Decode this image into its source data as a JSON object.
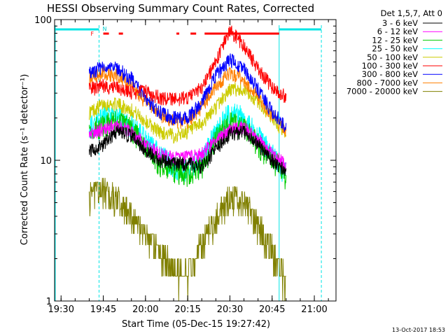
{
  "chart_data": {
    "type": "line",
    "title": "HESSI Observing Summary Count Rates, Corrected",
    "xlabel": "Start Time (05-Dec-15 19:27:42)",
    "ylabel": "Corrected Count Rate (s⁻¹ detector⁻¹)",
    "y_scale": "log",
    "ylim": [
      1,
      100
    ],
    "xlim": [
      "19:27:42",
      "21:07:42"
    ],
    "x_tick_labels": [
      "19:30",
      "19:45",
      "20:00",
      "20:15",
      "20:30",
      "20:45",
      "21:00"
    ],
    "y_tick_labels": [
      "1",
      "10",
      "100"
    ],
    "legend_title": "Det 1,5,7, Att 0",
    "flag_labels": {
      "flare": "F",
      "night": "N"
    },
    "timestamp": "13-Oct-2017 18:53",
    "x": [
      "19:40",
      "19:45",
      "19:50",
      "19:55",
      "20:00",
      "20:05",
      "20:10",
      "20:15",
      "20:20",
      "20:25",
      "20:30",
      "20:35",
      "20:40",
      "20:45",
      "20:48",
      "20:50"
    ],
    "series": [
      {
        "name": "3 - 6 keV",
        "color": "#000000",
        "values": [
          11.5,
          13,
          16,
          15,
          12,
          10,
          9.5,
          9.5,
          9,
          12,
          15.5,
          16,
          13,
          10,
          9,
          8
        ]
      },
      {
        "name": "6 - 12 keV",
        "color": "#ff00ff",
        "values": [
          15,
          17,
          18,
          16,
          13,
          11,
          10.5,
          10.5,
          11,
          14,
          17,
          17,
          14,
          11,
          10,
          9
        ]
      },
      {
        "name": "12 - 25 keV",
        "color": "#00cc00",
        "values": [
          16,
          18,
          19,
          17,
          12,
          9.5,
          8.5,
          8,
          9,
          14,
          19,
          17,
          13,
          10,
          9,
          7
        ]
      },
      {
        "name": "25 - 50 keV",
        "color": "#00ffff",
        "values": [
          17,
          20,
          20,
          18,
          14,
          11,
          9,
          8.5,
          10,
          16,
          22,
          20,
          15,
          11,
          9,
          8
        ]
      },
      {
        "name": "50 - 100 keV",
        "color": "#cccc00",
        "values": [
          22,
          25,
          25,
          23,
          19,
          16,
          15,
          16,
          18,
          24,
          32,
          32,
          26,
          20,
          17,
          16
        ]
      },
      {
        "name": "100 - 300 keV",
        "color": "#ff0000",
        "values": [
          32,
          34,
          33,
          30,
          31,
          28,
          27,
          28,
          33,
          50,
          85,
          65,
          45,
          33,
          30,
          28
        ]
      },
      {
        "name": "300 - 800 keV",
        "color": "#0000ff",
        "values": [
          42,
          46,
          45,
          38,
          28,
          22,
          20,
          20,
          26,
          40,
          52,
          45,
          32,
          22,
          19,
          17
        ]
      },
      {
        "name": "800 - 7000 keV",
        "color": "#ff8000",
        "values": [
          38,
          42,
          40,
          34,
          26,
          21,
          19,
          19,
          24,
          34,
          42,
          38,
          28,
          21,
          18,
          16
        ]
      },
      {
        "name": "7000 - 20000 keV",
        "color": "#808000",
        "values": [
          5.5,
          6,
          5.2,
          4,
          3,
          2.2,
          1.6,
          1.5,
          2.5,
          4,
          5.5,
          5,
          3.5,
          2.2,
          1.6,
          1.4
        ]
      }
    ]
  }
}
